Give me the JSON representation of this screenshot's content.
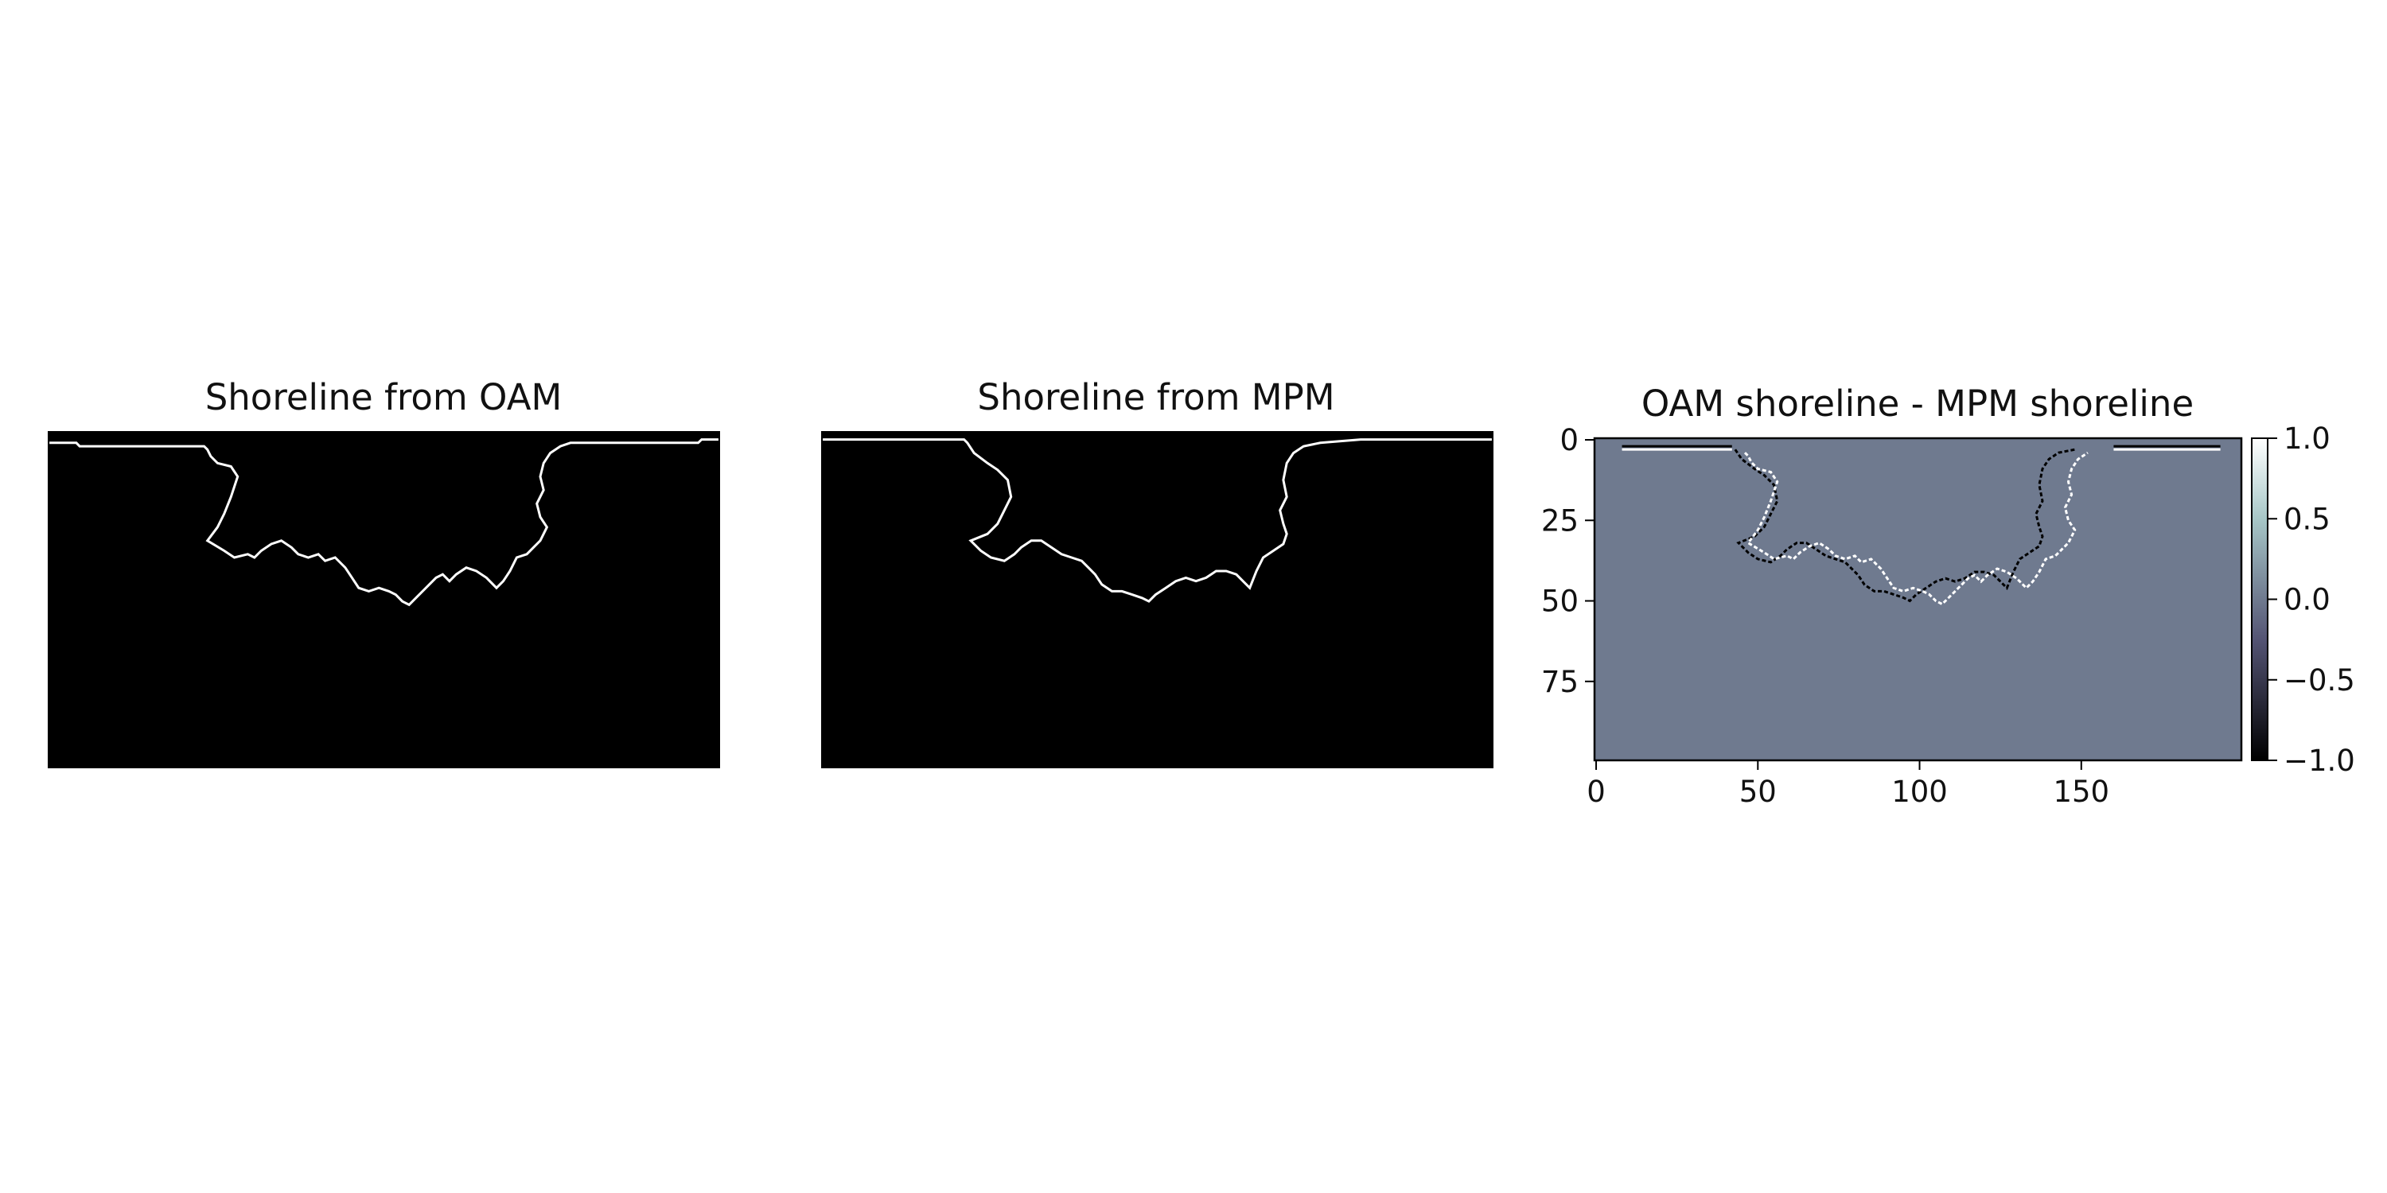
{
  "chart_data": [
    {
      "type": "heatmap",
      "title": "Shoreline from OAM",
      "colormap": "gray",
      "axes_visible": false,
      "grid": false,
      "rows": 100,
      "cols": 200,
      "line_color": "#ffffff",
      "background_color": "#000000",
      "shoreline": [
        [
          0,
          3
        ],
        [
          8,
          3
        ],
        [
          9,
          4
        ],
        [
          46,
          4
        ],
        [
          47,
          5
        ],
        [
          48,
          7
        ],
        [
          50,
          9
        ],
        [
          54,
          10
        ],
        [
          56,
          13
        ],
        [
          54,
          19
        ],
        [
          52,
          24
        ],
        [
          50,
          28
        ],
        [
          47,
          32
        ],
        [
          52,
          35
        ],
        [
          55,
          37
        ],
        [
          59,
          36
        ],
        [
          61,
          37
        ],
        [
          63,
          35
        ],
        [
          66,
          33
        ],
        [
          69,
          32
        ],
        [
          72,
          34
        ],
        [
          74,
          36
        ],
        [
          77,
          37
        ],
        [
          80,
          36
        ],
        [
          82,
          38
        ],
        [
          85,
          37
        ],
        [
          88,
          40
        ],
        [
          90,
          43
        ],
        [
          92,
          46
        ],
        [
          95,
          47
        ],
        [
          98,
          46
        ],
        [
          101,
          47
        ],
        [
          103,
          48
        ],
        [
          105,
          50
        ],
        [
          107,
          51
        ],
        [
          109,
          49
        ],
        [
          112,
          46
        ],
        [
          115,
          43
        ],
        [
          117,
          42
        ],
        [
          119,
          44
        ],
        [
          121,
          42
        ],
        [
          124,
          40
        ],
        [
          127,
          41
        ],
        [
          130,
          43
        ],
        [
          133,
          46
        ],
        [
          135,
          44
        ],
        [
          137,
          41
        ],
        [
          139,
          37
        ],
        [
          142,
          36
        ],
        [
          144,
          34
        ],
        [
          146,
          32
        ],
        [
          148,
          28
        ],
        [
          146,
          25
        ],
        [
          145,
          21
        ],
        [
          147,
          17
        ],
        [
          146,
          13
        ],
        [
          147,
          9
        ],
        [
          149,
          6
        ],
        [
          152,
          4
        ],
        [
          155,
          3
        ],
        [
          193,
          3
        ],
        [
          194,
          2
        ],
        [
          199,
          2
        ]
      ]
    },
    {
      "type": "heatmap",
      "title": "Shoreline from MPM",
      "colormap": "gray",
      "axes_visible": false,
      "grid": false,
      "rows": 100,
      "cols": 200,
      "line_color": "#ffffff",
      "background_color": "#000000",
      "shoreline": [
        [
          0,
          2
        ],
        [
          42,
          2
        ],
        [
          43,
          3
        ],
        [
          45,
          6
        ],
        [
          49,
          9
        ],
        [
          52,
          11
        ],
        [
          55,
          14
        ],
        [
          56,
          19
        ],
        [
          54,
          23
        ],
        [
          52,
          27
        ],
        [
          49,
          30
        ],
        [
          44,
          32
        ],
        [
          47,
          35
        ],
        [
          50,
          37
        ],
        [
          54,
          38
        ],
        [
          57,
          36
        ],
        [
          59,
          34
        ],
        [
          62,
          32
        ],
        [
          65,
          32
        ],
        [
          68,
          34
        ],
        [
          71,
          36
        ],
        [
          74,
          37
        ],
        [
          77,
          38
        ],
        [
          79,
          40
        ],
        [
          81,
          42
        ],
        [
          83,
          45
        ],
        [
          86,
          47
        ],
        [
          89,
          47
        ],
        [
          92,
          48
        ],
        [
          95,
          49
        ],
        [
          97,
          50
        ],
        [
          99,
          48
        ],
        [
          102,
          46
        ],
        [
          105,
          44
        ],
        [
          108,
          43
        ],
        [
          111,
          44
        ],
        [
          114,
          43
        ],
        [
          117,
          41
        ],
        [
          120,
          41
        ],
        [
          123,
          42
        ],
        [
          125,
          44
        ],
        [
          127,
          46
        ],
        [
          129,
          41
        ],
        [
          131,
          37
        ],
        [
          134,
          35
        ],
        [
          137,
          33
        ],
        [
          138,
          30
        ],
        [
          137,
          27
        ],
        [
          136,
          23
        ],
        [
          138,
          19
        ],
        [
          137,
          14
        ],
        [
          138,
          9
        ],
        [
          140,
          6
        ],
        [
          143,
          4
        ],
        [
          148,
          3
        ],
        [
          160,
          2
        ],
        [
          199,
          2
        ]
      ]
    },
    {
      "type": "heatmap",
      "title": "OAM shoreline - MPM shoreline",
      "colormap": "bone",
      "axes_visible": true,
      "grid": false,
      "rows": 100,
      "cols": 200,
      "x_ticks": [
        0,
        50,
        100,
        150
      ],
      "y_ticks": [
        0,
        25,
        50,
        75
      ],
      "xlim": [
        0,
        199
      ],
      "ylim": [
        99,
        0
      ],
      "background_value": 0.0,
      "background_color": "#6f7a8f",
      "positive_color": "#ffffff",
      "negative_color": "#000000",
      "colorbar": {
        "range": [
          -1.0,
          1.0
        ],
        "ticks": [
          {
            "value": 1.0,
            "label": "1.0"
          },
          {
            "value": 0.5,
            "label": "0.5"
          },
          {
            "value": 0.0,
            "label": "0.0"
          },
          {
            "value": -0.5,
            "label": "−0.5"
          },
          {
            "value": -1.0,
            "label": "−1.0"
          }
        ]
      },
      "positive_segments": [
        {
          "row": 3,
          "col_start": 8,
          "col_end": 42
        },
        {
          "row": 3,
          "col_start": 160,
          "col_end": 193
        }
      ],
      "negative_segments": [
        {
          "row": 2,
          "col_start": 8,
          "col_end": 42
        },
        {
          "row": 2,
          "col_start": 160,
          "col_end": 193
        }
      ]
    }
  ]
}
